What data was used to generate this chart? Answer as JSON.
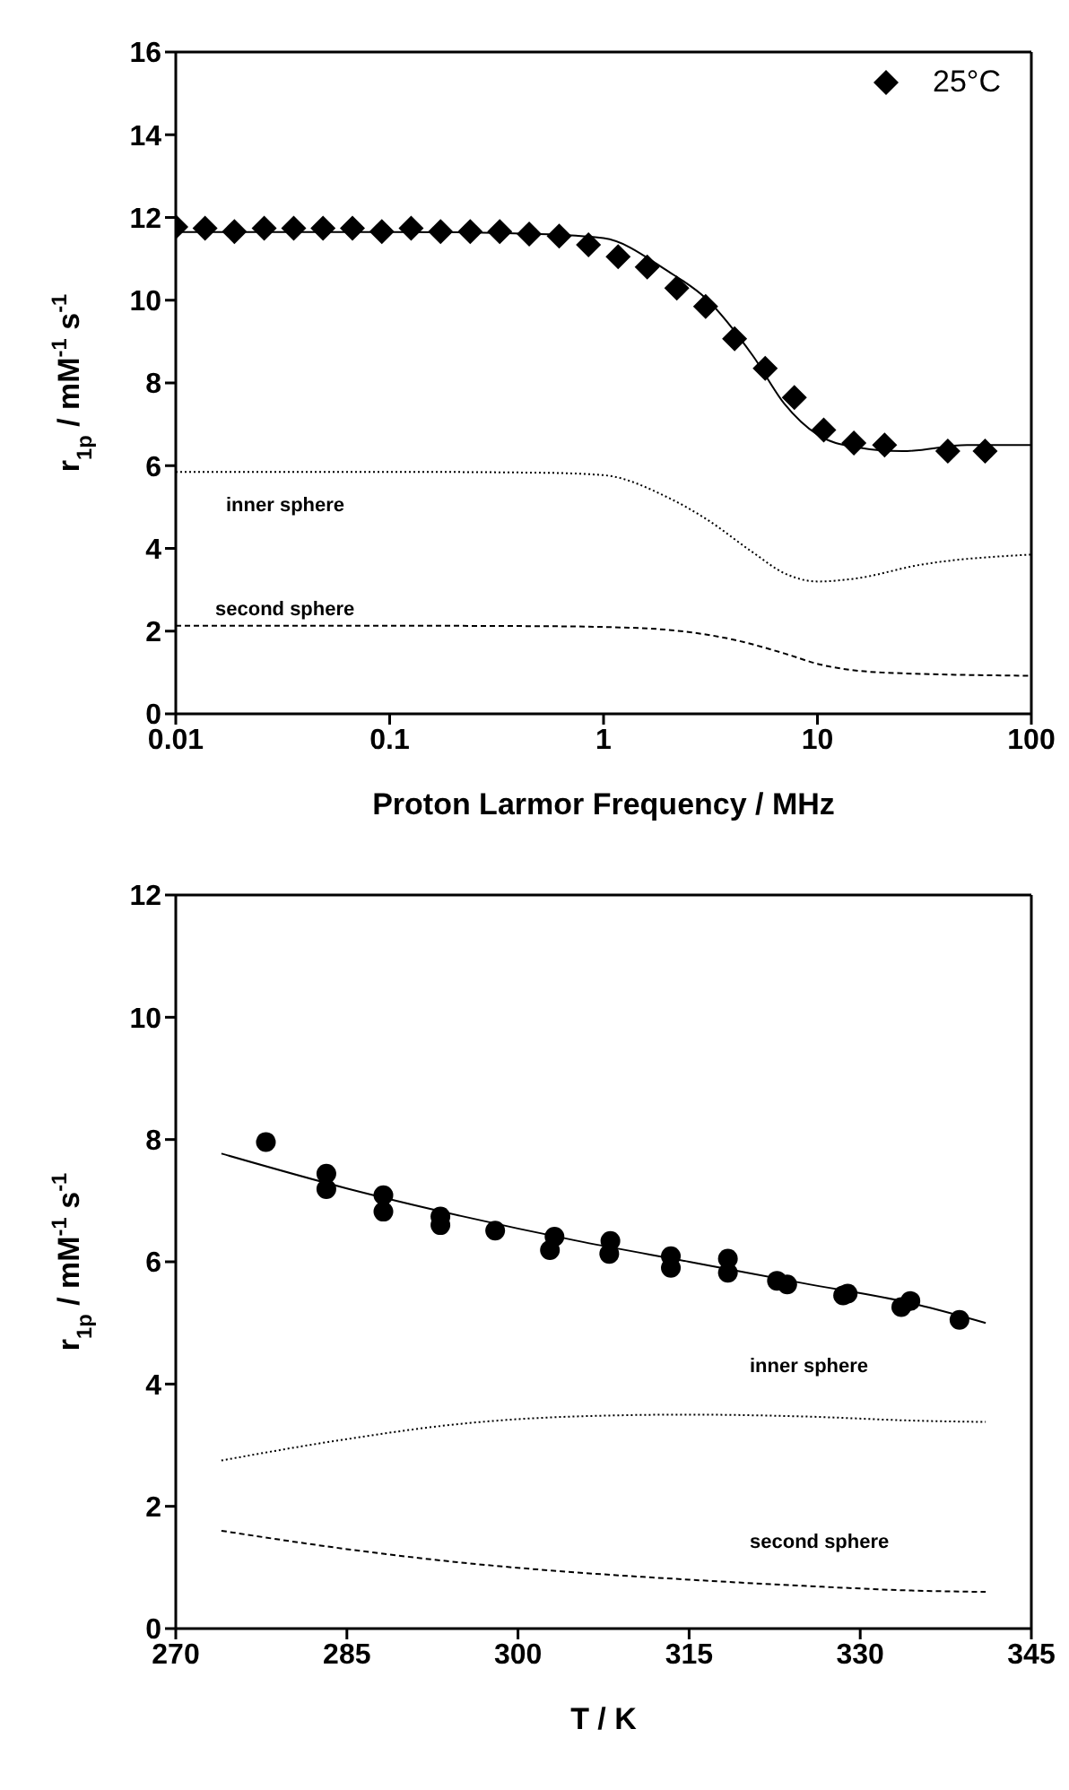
{
  "chart_data": [
    {
      "type": "scatter",
      "xlabel": "Proton Larmor Frequency / MHz",
      "ylabel": "r$_{1p}$ / mM$^{-1}$ s$^{-1}$",
      "log": "x",
      "xlim": [
        0.01,
        100
      ],
      "xticks": [
        0.01,
        0.1,
        1,
        10,
        100
      ],
      "ylim": [
        0,
        16
      ],
      "yticks": [
        0,
        2,
        4,
        6,
        8,
        10,
        12,
        14,
        16
      ],
      "legend": "top right",
      "series": [
        {
          "name": "25°C",
          "marker": "diamond",
          "color": "#000000",
          "x": [
            0.01,
            0.0137,
            0.0188,
            0.0259,
            0.0356,
            0.0488,
            0.067,
            0.0919,
            0.126,
            0.173,
            0.238,
            0.327,
            0.449,
            0.62,
            0.85,
            1.17,
            1.6,
            2.2,
            3.0,
            4.1,
            5.7,
            7.8,
            10.7,
            14.8,
            20.6,
            40.7,
            60.8
          ],
          "values": [
            11.77,
            11.74,
            11.66,
            11.74,
            11.74,
            11.74,
            11.74,
            11.66,
            11.74,
            11.66,
            11.66,
            11.66,
            11.6,
            11.55,
            11.34,
            11.05,
            10.8,
            10.29,
            9.85,
            9.07,
            8.35,
            7.65,
            6.86,
            6.55,
            6.5,
            6.35,
            6.35
          ]
        },
        {
          "type": "line",
          "line_style": "solid",
          "color": "#000000",
          "x": [
            0.01,
            0.1,
            0.5,
            1,
            2,
            3,
            5,
            7,
            10,
            15,
            25,
            50,
            100
          ],
          "values": [
            11.65,
            11.65,
            11.6,
            11.5,
            10.7,
            10.05,
            8.65,
            7.5,
            6.75,
            6.45,
            6.35,
            6.5,
            6.5
          ]
        },
        {
          "type": "line",
          "line_style": "dotted",
          "color": "#000000",
          "x": [
            0.01,
            0.1,
            0.5,
            1,
            2,
            3,
            5,
            7,
            10,
            15,
            30,
            100
          ],
          "values": [
            5.85,
            5.85,
            5.83,
            5.77,
            5.23,
            4.72,
            3.9,
            3.4,
            3.2,
            3.27,
            3.6,
            3.85
          ]
        },
        {
          "type": "line",
          "line_style": "dashed",
          "color": "#000000",
          "x": [
            0.01,
            0.1,
            0.5,
            1,
            2,
            4,
            7,
            10,
            20,
            100
          ],
          "values": [
            2.13,
            2.13,
            2.12,
            2.1,
            2.03,
            1.8,
            1.46,
            1.21,
            1.0,
            0.92
          ]
        }
      ],
      "annotations": [
        "inner sphere",
        "second sphere"
      ]
    },
    {
      "type": "scatter",
      "xlabel": "T / K",
      "ylabel": "r$_{1p}$ / mM$^{-1}$ s$^{-1}$",
      "xlim": [
        270,
        345
      ],
      "xticks": [
        270,
        285,
        300,
        315,
        330,
        345
      ],
      "ylim": [
        0,
        12
      ],
      "yticks": [
        0,
        2,
        4,
        6,
        8,
        10,
        12
      ],
      "series": [
        {
          "marker": "circle",
          "color": "#000000",
          "x": [
            277.9,
            283.2,
            283.2,
            288.2,
            288.2,
            293.2,
            293.2,
            298.0,
            303.2,
            302.8,
            308.1,
            308.0,
            313.4,
            313.4,
            318.4,
            318.4,
            322.7,
            323.6,
            328.5,
            328.9,
            333.6,
            334.4,
            338.7
          ],
          "values": [
            7.96,
            7.44,
            7.19,
            7.09,
            6.82,
            6.74,
            6.6,
            6.51,
            6.41,
            6.19,
            6.34,
            6.13,
            6.09,
            5.9,
            6.05,
            5.82,
            5.69,
            5.63,
            5.45,
            5.48,
            5.26,
            5.36,
            5.05
          ]
        },
        {
          "type": "line",
          "line_style": "solid",
          "color": "#000000",
          "x": [
            274,
            285,
            295,
            305,
            315,
            325,
            335,
            341
          ],
          "values": [
            7.77,
            7.2,
            6.75,
            6.35,
            6.0,
            5.65,
            5.3,
            5.0
          ]
        },
        {
          "type": "line",
          "line_style": "dotted",
          "color": "#000000",
          "x": [
            274,
            285,
            295,
            305,
            315,
            325,
            335,
            341
          ],
          "values": [
            2.75,
            3.1,
            3.35,
            3.47,
            3.5,
            3.47,
            3.4,
            3.38
          ]
        },
        {
          "type": "line",
          "line_style": "dashed",
          "color": "#000000",
          "x": [
            274,
            285,
            295,
            305,
            315,
            325,
            335,
            341
          ],
          "values": [
            1.6,
            1.3,
            1.08,
            0.92,
            0.8,
            0.7,
            0.62,
            0.6
          ]
        }
      ],
      "annotations": [
        "inner sphere",
        "second sphere"
      ]
    }
  ]
}
